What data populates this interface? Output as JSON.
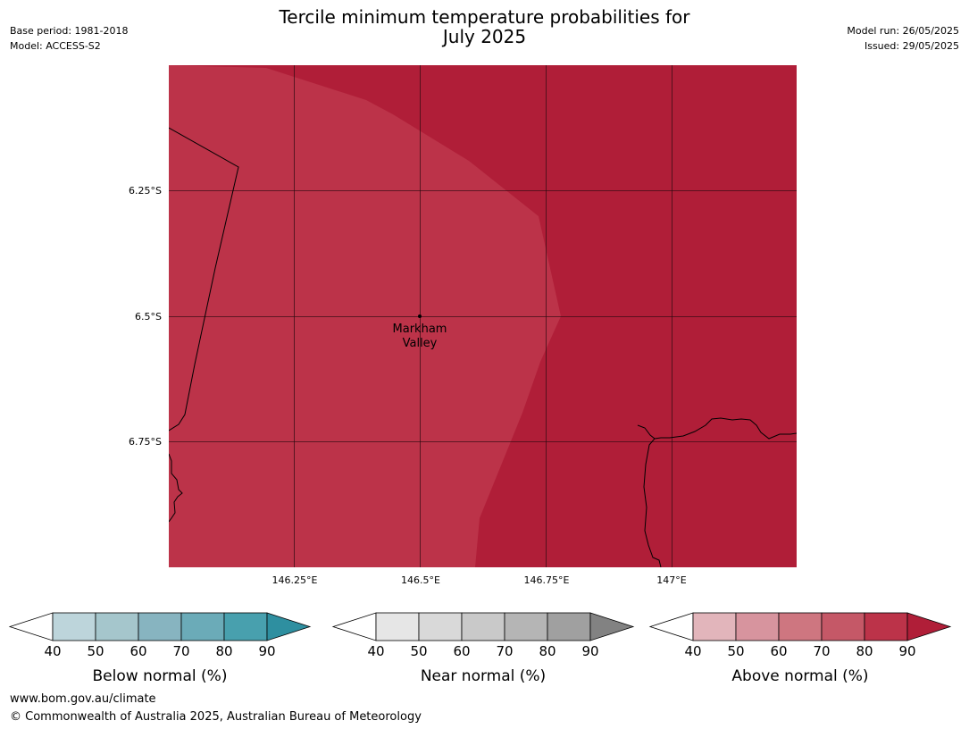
{
  "header": {
    "title_line1": "Tercile minimum temperature probabilities for",
    "title_line2": "July 2025",
    "base_period": "Base period: 1981-2018",
    "model": "Model: ACCESS-S2",
    "model_run": "Model run: 26/05/2025",
    "issued": "Issued: 29/05/2025"
  },
  "map": {
    "lon_ticks": [
      "146.25°E",
      "146.5°E",
      "146.75°E",
      "147°E"
    ],
    "lat_ticks": [
      "6.25°S",
      "6.5°S",
      "6.75°S"
    ],
    "place": {
      "name_line1": "Markham",
      "name_line2": "Valley"
    },
    "region_colors": {
      "above_70_80": "#bc3349",
      "above_80_90": "#b01e38"
    }
  },
  "colorbars": [
    {
      "label": "Below normal (%)",
      "ticks": [
        "40",
        "50",
        "60",
        "70",
        "80",
        "90"
      ],
      "colors": [
        "#ffffff",
        "#bdd5db",
        "#a5c6cc",
        "#87b4c0",
        "#6babb8",
        "#48a0ae",
        "#2e8fa0"
      ]
    },
    {
      "label": "Near normal (%)",
      "ticks": [
        "40",
        "50",
        "60",
        "70",
        "80",
        "90"
      ],
      "colors": [
        "#ffffff",
        "#e6e6e6",
        "#d9d9d9",
        "#c9c9c9",
        "#b5b5b5",
        "#a0a0a0",
        "#828282"
      ]
    },
    {
      "label": "Above normal (%)",
      "ticks": [
        "40",
        "50",
        "60",
        "70",
        "80",
        "90"
      ],
      "colors": [
        "#ffffff",
        "#e2b5bb",
        "#d7949e",
        "#ce7680",
        "#c55867",
        "#bc3349",
        "#b01e38"
      ]
    }
  ],
  "footer": {
    "url": "www.bom.gov.au/climate",
    "copyright": "© Commonwealth of Australia 2025, Australian Bureau of Meteorology"
  }
}
